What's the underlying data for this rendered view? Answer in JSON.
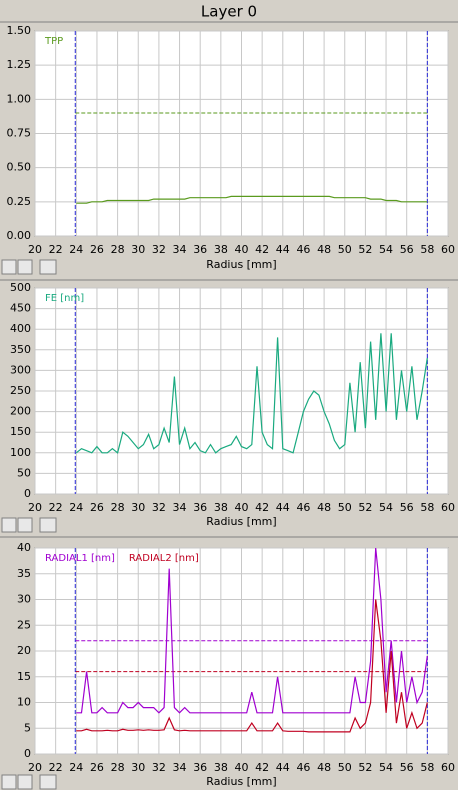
{
  "title": "Layer 0",
  "chart_data": [
    {
      "type": "line",
      "xlabel": "Radius [mm]",
      "xlim": [
        20,
        60
      ],
      "xticks": [
        20,
        22,
        24,
        26,
        28,
        30,
        32,
        34,
        36,
        38,
        40,
        42,
        44,
        46,
        48,
        50,
        52,
        54,
        56,
        58,
        60
      ],
      "ylim": [
        0,
        1.5
      ],
      "yticks": [
        {
          "value": 0,
          "label": "0.00"
        },
        0.25,
        {
          "value": 0.5,
          "label": "0.50"
        },
        0.75,
        {
          "value": 1,
          "label": "1.00"
        },
        1.25,
        {
          "value": 1.5,
          "label": "1.50"
        }
      ],
      "grid": true,
      "vlines": [
        23.9,
        58.0
      ],
      "vline_color": "#2a2ad8",
      "hlines": [
        {
          "value": 0.9,
          "color": "#5a9a1e"
        }
      ],
      "x": [
        24,
        24.5,
        25,
        25.5,
        26,
        26.5,
        27,
        27.5,
        28,
        28.5,
        29,
        29.5,
        30,
        30.5,
        31,
        31.5,
        32,
        32.5,
        33,
        33.5,
        34,
        34.5,
        35,
        35.5,
        36,
        36.5,
        37,
        37.5,
        38,
        38.5,
        39,
        39.5,
        40,
        40.5,
        41,
        41.5,
        42,
        42.5,
        43,
        43.5,
        44,
        44.5,
        45,
        45.5,
        46,
        46.5,
        47,
        47.5,
        48,
        48.5,
        49,
        49.5,
        50,
        50.5,
        51,
        51.5,
        52,
        52.5,
        53,
        53.5,
        54,
        54.5,
        55,
        55.5,
        56,
        56.5,
        57,
        57.5,
        58
      ],
      "series": [
        {
          "name": "TPP",
          "color": "#5a9a1e",
          "values": [
            0.24,
            0.24,
            0.24,
            0.25,
            0.25,
            0.25,
            0.26,
            0.26,
            0.26,
            0.26,
            0.26,
            0.26,
            0.26,
            0.26,
            0.26,
            0.27,
            0.27,
            0.27,
            0.27,
            0.27,
            0.27,
            0.27,
            0.28,
            0.28,
            0.28,
            0.28,
            0.28,
            0.28,
            0.28,
            0.28,
            0.29,
            0.29,
            0.29,
            0.29,
            0.29,
            0.29,
            0.29,
            0.29,
            0.29,
            0.29,
            0.29,
            0.29,
            0.29,
            0.29,
            0.29,
            0.29,
            0.29,
            0.29,
            0.29,
            0.29,
            0.28,
            0.28,
            0.28,
            0.28,
            0.28,
            0.28,
            0.28,
            0.27,
            0.27,
            0.27,
            0.26,
            0.26,
            0.26,
            0.25,
            0.25,
            0.25,
            0.25,
            0.25,
            0.25
          ]
        }
      ]
    },
    {
      "type": "line",
      "xlabel": "Radius [mm]",
      "xlim": [
        20,
        60
      ],
      "xticks": [
        20,
        22,
        24,
        26,
        28,
        30,
        32,
        34,
        36,
        38,
        40,
        42,
        44,
        46,
        48,
        50,
        52,
        54,
        56,
        58,
        60
      ],
      "ylim": [
        0,
        500
      ],
      "yticks": [
        0,
        50,
        100,
        150,
        200,
        250,
        300,
        350,
        400,
        450,
        500
      ],
      "grid": true,
      "vlines": [
        23.9,
        58.0
      ],
      "vline_color": "#2a2ad8",
      "hlines": [],
      "x": [
        24,
        24.5,
        25,
        25.5,
        26,
        26.5,
        27,
        27.5,
        28,
        28.5,
        29,
        29.5,
        30,
        30.5,
        31,
        31.5,
        32,
        32.5,
        33,
        33.5,
        34,
        34.5,
        35,
        35.5,
        36,
        36.5,
        37,
        37.5,
        38,
        38.5,
        39,
        39.5,
        40,
        40.5,
        41,
        41.5,
        42,
        42.5,
        43,
        43.5,
        44,
        44.5,
        45,
        45.5,
        46,
        46.5,
        47,
        47.5,
        48,
        48.5,
        49,
        49.5,
        50,
        50.5,
        51,
        51.5,
        52,
        52.5,
        53,
        53.5,
        54,
        54.5,
        55,
        55.5,
        56,
        56.5,
        57,
        57.5,
        58
      ],
      "series": [
        {
          "name": "FE [nm]",
          "color": "#1aaa80",
          "values": [
            100,
            110,
            105,
            100,
            115,
            100,
            100,
            110,
            100,
            150,
            140,
            125,
            110,
            120,
            145,
            110,
            120,
            160,
            125,
            285,
            120,
            160,
            110,
            125,
            105,
            100,
            120,
            100,
            110,
            115,
            120,
            140,
            115,
            110,
            120,
            310,
            150,
            120,
            110,
            380,
            110,
            105,
            100,
            150,
            200,
            230,
            250,
            240,
            200,
            170,
            130,
            110,
            120,
            270,
            150,
            320,
            160,
            370,
            180,
            390,
            200,
            390,
            180,
            300,
            200,
            310,
            180,
            250,
            330
          ]
        }
      ]
    },
    {
      "type": "line",
      "xlabel": "Radius [mm]",
      "xlim": [
        20,
        60
      ],
      "xticks": [
        20,
        22,
        24,
        26,
        28,
        30,
        32,
        34,
        36,
        38,
        40,
        42,
        44,
        46,
        48,
        50,
        52,
        54,
        56,
        58,
        60
      ],
      "ylim": [
        0,
        40
      ],
      "yticks": [
        0,
        5,
        10,
        15,
        20,
        25,
        30,
        35,
        40
      ],
      "grid": true,
      "vlines": [
        23.9,
        58.0
      ],
      "vline_color": "#2a2ad8",
      "hlines": [
        {
          "value": 22,
          "color": "#a000d0"
        },
        {
          "value": 16,
          "color": "#c00020"
        }
      ],
      "x": [
        24,
        24.5,
        25,
        25.5,
        26,
        26.5,
        27,
        27.5,
        28,
        28.5,
        29,
        29.5,
        30,
        30.5,
        31,
        31.5,
        32,
        32.5,
        33,
        33.5,
        34,
        34.5,
        35,
        35.5,
        36,
        36.5,
        37,
        37.5,
        38,
        38.5,
        39,
        39.5,
        40,
        40.5,
        41,
        41.5,
        42,
        42.5,
        43,
        43.5,
        44,
        44.5,
        45,
        45.5,
        46,
        46.5,
        47,
        47.5,
        48,
        48.5,
        49,
        49.5,
        50,
        50.5,
        51,
        51.5,
        52,
        52.5,
        53,
        53.5,
        54,
        54.5,
        55,
        55.5,
        56,
        56.5,
        57,
        57.5,
        58
      ],
      "series": [
        {
          "name": "RADIAL1 [nm]",
          "color": "#a000d0",
          "values": [
            8,
            8,
            16,
            8,
            8,
            9,
            8,
            8,
            8,
            10,
            9,
            9,
            10,
            9,
            9,
            9,
            8,
            9,
            36,
            9,
            8,
            9,
            8,
            8,
            8,
            8,
            8,
            8,
            8,
            8,
            8,
            8,
            8,
            8,
            12,
            8,
            8,
            8,
            8,
            15,
            8,
            8,
            8,
            8,
            8,
            8,
            8,
            8,
            8,
            8,
            8,
            8,
            8,
            8,
            15,
            10,
            10,
            18,
            40,
            30,
            12,
            22,
            10,
            20,
            10,
            15,
            10,
            12,
            19
          ]
        },
        {
          "name": "RADIAL2 [nm]",
          "color": "#c00020",
          "values": [
            4.5,
            4.5,
            4.8,
            4.5,
            4.5,
            4.5,
            4.6,
            4.5,
            4.5,
            4.8,
            4.6,
            4.6,
            4.7,
            4.6,
            4.7,
            4.6,
            4.6,
            4.7,
            7,
            4.7,
            4.5,
            4.6,
            4.5,
            4.5,
            4.5,
            4.5,
            4.5,
            4.5,
            4.5,
            4.5,
            4.5,
            4.5,
            4.5,
            4.5,
            6,
            4.5,
            4.5,
            4.5,
            4.5,
            6,
            4.5,
            4.4,
            4.4,
            4.4,
            4.4,
            4.3,
            4.3,
            4.3,
            4.3,
            4.3,
            4.3,
            4.3,
            4.3,
            4.3,
            7,
            5,
            6,
            10,
            30,
            22,
            8,
            20,
            6,
            12,
            5,
            8,
            5,
            6,
            10
          ]
        }
      ]
    }
  ]
}
